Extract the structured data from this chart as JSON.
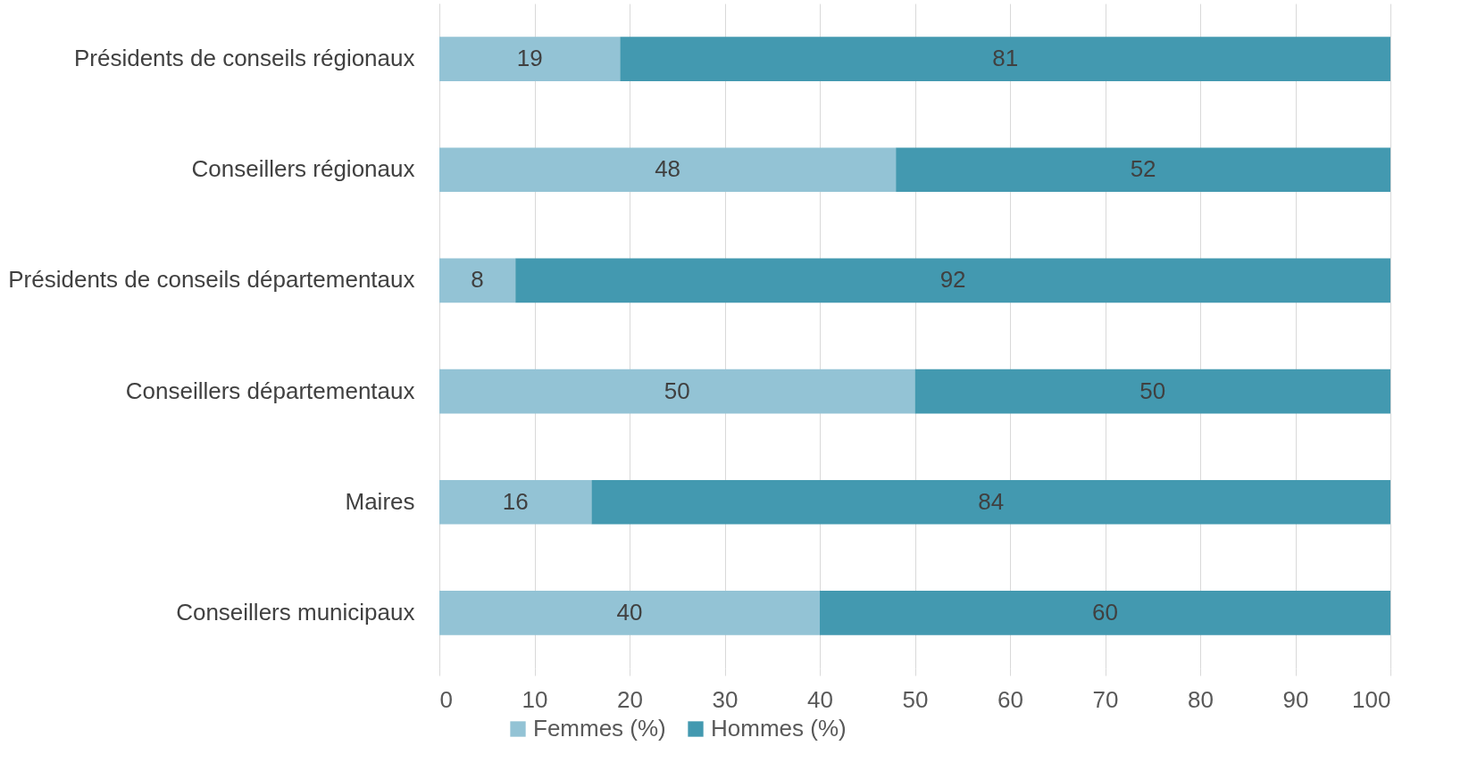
{
  "chart_data": {
    "type": "bar",
    "orientation": "horizontal",
    "stacked": true,
    "categories": [
      "Présidents de conseils régionaux",
      "Conseillers régionaux",
      "Présidents de conseils départementaux",
      "Conseillers départementaux",
      "Maires",
      "Conseillers municipaux"
    ],
    "series": [
      {
        "name": "Femmes (%)",
        "color": "#93c3d5",
        "values": [
          19,
          48,
          8,
          50,
          16,
          40
        ]
      },
      {
        "name": "Hommes (%)",
        "color": "#4399b0",
        "values": [
          81,
          52,
          92,
          50,
          84,
          60
        ]
      }
    ],
    "xlim": [
      0,
      100
    ],
    "xticks": [
      0,
      10,
      20,
      30,
      40,
      50,
      60,
      70,
      80,
      90,
      100
    ],
    "grid": "x",
    "legend": "bottom",
    "data_labels": true
  }
}
